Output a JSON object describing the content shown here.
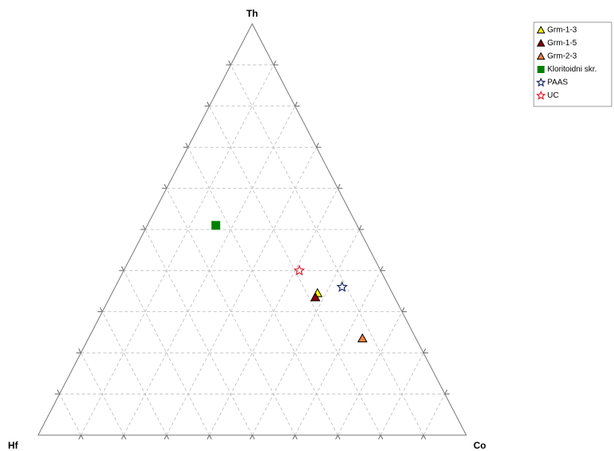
{
  "chart_data": {
    "type": "ternary",
    "axes": [
      "Th",
      "Hf",
      "Co"
    ],
    "ticks": [
      10,
      20,
      30,
      40,
      50,
      60,
      70,
      80,
      90
    ],
    "grid": true,
    "legend": "top-right",
    "series": [
      {
        "name": "Grm-1-3",
        "marker": "triangle",
        "color": "#ffff00",
        "values": [
          34.5,
          17.5,
          48
        ]
      },
      {
        "name": "Grm-1-5",
        "marker": "triangle",
        "color": "#8b0000",
        "values": [
          33.5,
          18.5,
          48
        ]
      },
      {
        "name": "Grm-2-3",
        "marker": "triangle",
        "color": "#f08040",
        "values": [
          23.5,
          12.5,
          64
        ]
      },
      {
        "name": "Kloritoidni skr.",
        "marker": "square",
        "color": "#008000",
        "values": [
          51,
          33,
          16
        ]
      },
      {
        "name": "PAAS",
        "marker": "star",
        "color": "#1a2a60",
        "values": [
          36,
          11,
          53
        ]
      },
      {
        "name": "UC",
        "marker": "star",
        "color": "#e02030",
        "values": [
          40,
          19,
          41
        ]
      }
    ]
  }
}
